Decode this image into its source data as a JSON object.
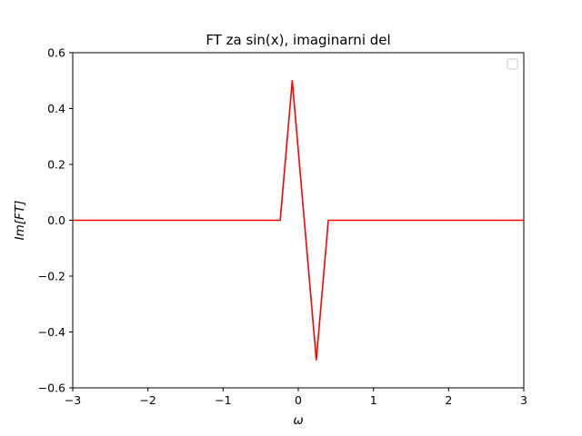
{
  "chart_data": {
    "type": "line",
    "title": "FT za sin(x), imaginarni del",
    "xlabel": "ω",
    "ylabel": "Im[FT]",
    "xlim": [
      -3,
      3
    ],
    "ylim": [
      -0.6,
      0.6
    ],
    "xticks": [
      -3,
      -2,
      -1,
      0,
      1,
      2,
      3
    ],
    "xtick_labels": [
      "−3",
      "−2",
      "−1",
      "0",
      "1",
      "2",
      "3"
    ],
    "yticks": [
      -0.6,
      -0.4,
      -0.2,
      0.0,
      0.2,
      0.4,
      0.6
    ],
    "ytick_labels": [
      "−0.6",
      "−0.4",
      "−0.2",
      "0.0",
      "0.2",
      "0.4",
      "0.6"
    ],
    "grid": false,
    "legend": {
      "position": "top-right",
      "entries": []
    },
    "series": [
      {
        "color": "#ff0000",
        "x": [
          -3.0,
          -0.24,
          -0.08,
          0.24,
          0.4,
          3.0
        ],
        "y": [
          0.0,
          0.0,
          0.5,
          -0.5,
          0.0,
          0.0
        ]
      }
    ]
  }
}
